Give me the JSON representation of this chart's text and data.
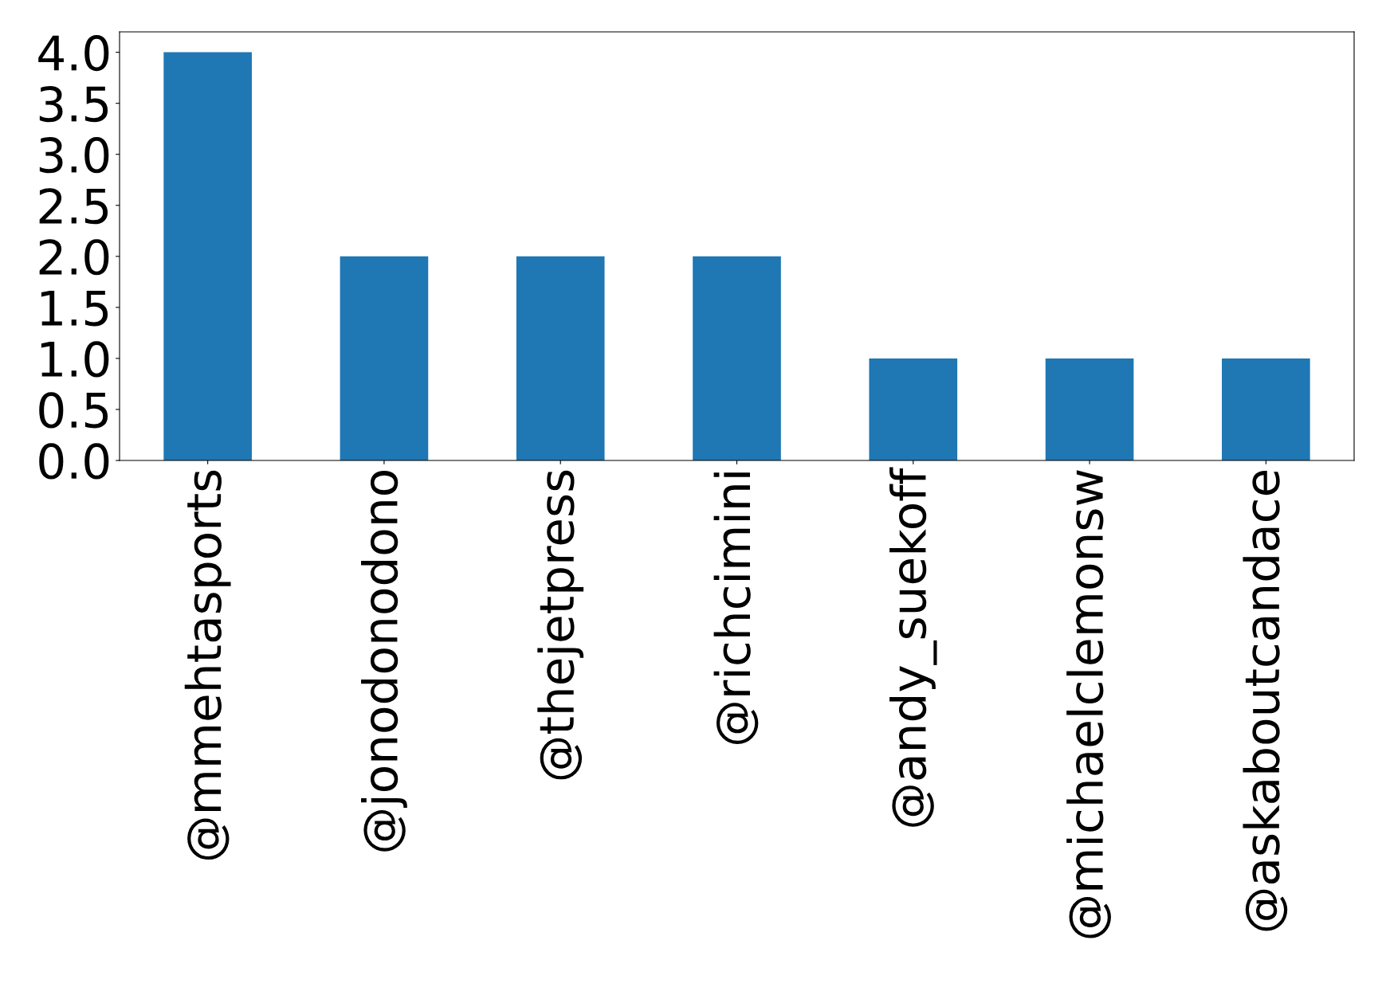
{
  "chart_data": {
    "type": "bar",
    "categories": [
      "@mmehtasports",
      "@jonodonodono",
      "@thejetpress",
      "@richcimini",
      "@andy_suekoff",
      "@michaelclemonsw",
      "@askaboutcandace"
    ],
    "values": [
      4,
      2,
      2,
      2,
      1,
      1,
      1
    ],
    "color": "#1f77b4",
    "ylim": [
      0,
      4.2
    ],
    "yticks": [
      {
        "value": 0,
        "label": "0.0"
      },
      {
        "value": 0.5,
        "label": "0.5"
      },
      {
        "value": 1,
        "label": "1.0"
      },
      {
        "value": 1.5,
        "label": "1.5"
      },
      {
        "value": 2,
        "label": "2.0"
      },
      {
        "value": 2.5,
        "label": "2.5"
      },
      {
        "value": 3,
        "label": "3.0"
      },
      {
        "value": 3.5,
        "label": "3.5"
      },
      {
        "value": 4,
        "label": "4.0"
      }
    ],
    "grid": false,
    "legend": false
  }
}
